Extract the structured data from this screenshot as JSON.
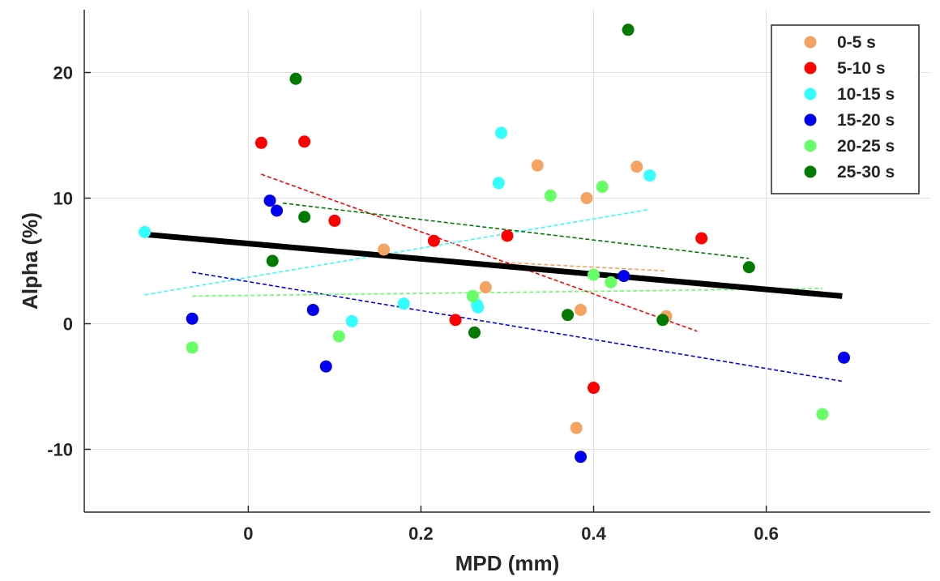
{
  "chart_data": {
    "type": "scatter",
    "xlabel": "MPD (mm)",
    "ylabel": "Alpha (%)",
    "xlim": [
      -0.19,
      0.79
    ],
    "ylim": [
      -15,
      25
    ],
    "xticks": [
      0,
      0.2,
      0.4,
      0.6
    ],
    "xtick_labels": [
      "0",
      "0.2",
      "0.4",
      "0.6"
    ],
    "yticks": [
      -10,
      0,
      10,
      20
    ],
    "ytick_labels": [
      "-10",
      "0",
      "10",
      "20"
    ],
    "grid": true,
    "legend_position": "top-right",
    "series": [
      {
        "name": "0-5 s",
        "color": "#f4a460",
        "points": [
          [
            0.157,
            5.9
          ],
          [
            0.275,
            2.9
          ],
          [
            0.335,
            12.6
          ],
          [
            0.38,
            -8.3
          ],
          [
            0.385,
            1.1
          ],
          [
            0.392,
            10.0
          ],
          [
            0.45,
            12.5
          ],
          [
            0.484,
            0.6
          ]
        ],
        "trend": [
          [
            0.29,
            4.9
          ],
          [
            0.485,
            4.2
          ]
        ]
      },
      {
        "name": "5-10 s",
        "color": "#ff0000",
        "points": [
          [
            0.015,
            14.4
          ],
          [
            0.065,
            14.5
          ],
          [
            0.1,
            8.2
          ],
          [
            0.215,
            6.6
          ],
          [
            0.24,
            0.3
          ],
          [
            0.3,
            7.0
          ],
          [
            0.4,
            -5.1
          ],
          [
            0.525,
            6.8
          ]
        ],
        "trend": [
          [
            0.015,
            11.9
          ],
          [
            0.52,
            -0.6
          ]
        ]
      },
      {
        "name": "10-15 s",
        "color": "#33ffff",
        "points": [
          [
            -0.12,
            7.3
          ],
          [
            0.12,
            0.2
          ],
          [
            0.18,
            1.6
          ],
          [
            0.265,
            1.5
          ],
          [
            0.266,
            1.3
          ],
          [
            0.29,
            11.2
          ],
          [
            0.293,
            15.2
          ],
          [
            0.465,
            11.8
          ]
        ],
        "trend": [
          [
            -0.12,
            2.3
          ],
          [
            0.465,
            9.1
          ]
        ]
      },
      {
        "name": "15-20 s",
        "color": "#0000ee",
        "points": [
          [
            -0.065,
            0.4
          ],
          [
            0.025,
            9.8
          ],
          [
            0.033,
            9.0
          ],
          [
            0.075,
            1.1
          ],
          [
            0.09,
            -3.4
          ],
          [
            0.385,
            -10.6
          ],
          [
            0.435,
            3.8
          ],
          [
            0.69,
            -2.7
          ]
        ],
        "trend": [
          [
            -0.065,
            4.1
          ],
          [
            0.69,
            -4.6
          ]
        ]
      },
      {
        "name": "20-25 s",
        "color": "#66ff66",
        "points": [
          [
            -0.065,
            -1.9
          ],
          [
            0.105,
            -1.0
          ],
          [
            0.26,
            2.2
          ],
          [
            0.35,
            10.2
          ],
          [
            0.4,
            3.9
          ],
          [
            0.41,
            10.9
          ],
          [
            0.42,
            3.3
          ],
          [
            0.665,
            -7.2
          ]
        ],
        "trend": [
          [
            -0.065,
            2.2
          ],
          [
            0.665,
            2.8
          ]
        ]
      },
      {
        "name": "25-30 s",
        "color": "#007a00",
        "points": [
          [
            0.028,
            5.0
          ],
          [
            0.055,
            19.5
          ],
          [
            0.065,
            8.5
          ],
          [
            0.262,
            -0.7
          ],
          [
            0.37,
            0.7
          ],
          [
            0.44,
            23.4
          ],
          [
            0.48,
            0.3
          ],
          [
            0.58,
            4.5
          ]
        ],
        "trend": [
          [
            0.04,
            9.6
          ],
          [
            0.58,
            5.2
          ]
        ]
      }
    ],
    "overall_trend": {
      "color": "#000000",
      "points": [
        [
          -0.118,
          7.1
        ],
        [
          0.688,
          2.2
        ]
      ]
    }
  }
}
